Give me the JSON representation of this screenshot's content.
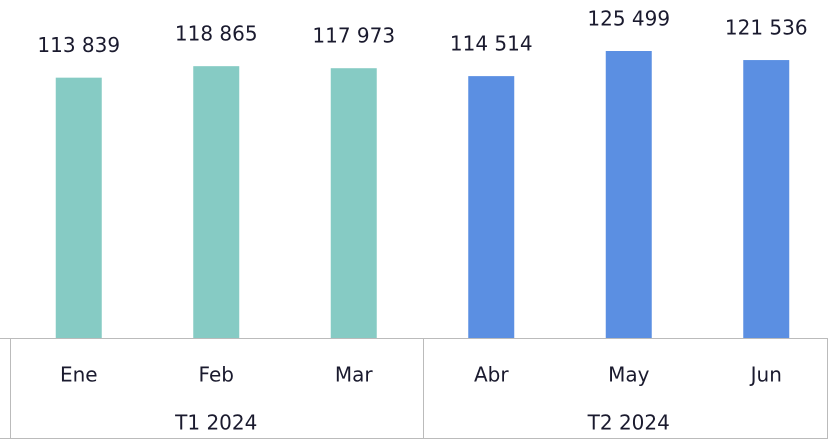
{
  "chart_data": {
    "type": "bar",
    "categories": [
      "Ene",
      "Feb",
      "Mar",
      "Abr",
      "May",
      "Jun"
    ],
    "series": [
      {
        "name": "T1 2024",
        "color": "#86cbc4",
        "values": [
          113839,
          118865,
          117973,
          null,
          null,
          null
        ],
        "value_labels": [
          "113 839",
          "118 865",
          "117 973",
          null,
          null,
          null
        ]
      },
      {
        "name": "T2 2024",
        "color": "#5b8fe2",
        "values": [
          null,
          null,
          null,
          114514,
          125499,
          121536
        ],
        "value_labels": [
          null,
          null,
          null,
          "114 514",
          "125 499",
          "121 536"
        ]
      }
    ]
  }
}
